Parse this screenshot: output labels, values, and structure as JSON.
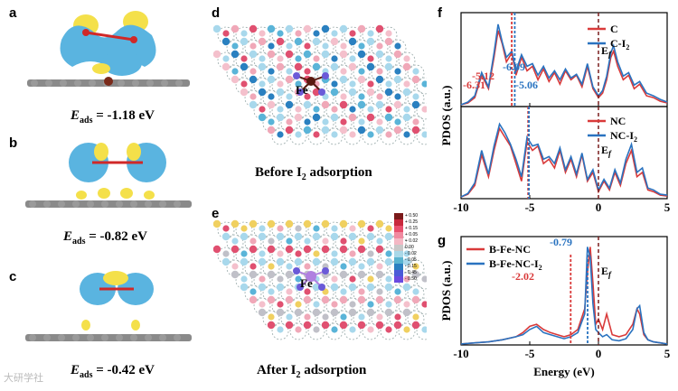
{
  "panels": {
    "a": {
      "label": "a",
      "e_symbol": "E",
      "e_sub": "ads",
      "e_value": "= -1.18 eV"
    },
    "b": {
      "label": "b",
      "e_symbol": "E",
      "e_sub": "ads",
      "e_value": "= -0.82 eV"
    },
    "c": {
      "label": "c",
      "e_symbol": "E",
      "e_sub": "ads",
      "e_value": "= -0.42 eV"
    },
    "d": {
      "label": "d",
      "caption_pre": "Before I",
      "caption_sub": "2",
      "caption_post": " adsorption",
      "atom_label": "Fe"
    },
    "e": {
      "label": "e",
      "caption_pre": "After I",
      "caption_sub": "2",
      "caption_post": " adsorption",
      "atom_label": "Fe",
      "colorbar": [
        "+ 0.50",
        "+ 0.25",
        "+ 0.15",
        "+ 0.05",
        "+ 0.02",
        "0.00",
        "- 0.02",
        "- 0.05",
        "- 0.15",
        "- 0.45",
        "- 0.50"
      ],
      "colorbar_colors": [
        "#7a1a1a",
        "#c8283c",
        "#e8506e",
        "#f08aa0",
        "#f4b8c4",
        "#c8c8c8",
        "#a8d8e8",
        "#5ab4d0",
        "#2a7fc0",
        "#4a5ad8",
        "#6a4ae0"
      ]
    },
    "f": {
      "label": "f"
    },
    "g": {
      "label": "g"
    }
  },
  "colors": {
    "red": "#d93a3a",
    "blue": "#2a73c0",
    "ef": "#7a1f1f"
  },
  "watermark": "大研学社",
  "chart_data": [
    {
      "type": "line",
      "id": "f_top",
      "ylabel": "PDOS (a.u.)",
      "xlim": [
        -10,
        5
      ],
      "xticks": [
        "-10",
        "-5",
        "0",
        "5"
      ],
      "legend": [
        {
          "name": "C",
          "color": "#d93a3a"
        },
        {
          "name": "C-I",
          "sub": "2",
          "color": "#2a73c0"
        }
      ],
      "fermi_label": "E",
      "fermi_sub": "f",
      "annotations": [
        {
          "text": "-6.31",
          "x": -6.31,
          "color": "#d93a3a"
        },
        {
          "text": "-6.09",
          "x": -6.09,
          "color": "#2a73c0"
        }
      ],
      "series": [
        {
          "name": "C",
          "color": "#d93a3a",
          "x": [
            -10,
            -9.5,
            -9,
            -8.5,
            -8,
            -7.6,
            -7.3,
            -7.0,
            -6.7,
            -6.3,
            -6.0,
            -5.6,
            -5.2,
            -4.8,
            -4.4,
            -4.0,
            -3.6,
            -3.2,
            -2.8,
            -2.4,
            -2.0,
            -1.6,
            -1.2,
            -0.8,
            -0.4,
            0,
            0.3,
            0.6,
            0.9,
            1.1,
            1.4,
            1.8,
            2.2,
            2.6,
            3.0,
            3.5,
            4.0,
            4.5,
            5
          ],
          "y": [
            0.02,
            0.04,
            0.1,
            0.35,
            0.2,
            0.55,
            0.85,
            0.7,
            0.5,
            0.6,
            0.35,
            0.55,
            0.4,
            0.45,
            0.3,
            0.42,
            0.28,
            0.38,
            0.25,
            0.4,
            0.3,
            0.35,
            0.22,
            0.45,
            0.2,
            0.1,
            0.15,
            0.3,
            0.55,
            0.62,
            0.45,
            0.3,
            0.35,
            0.2,
            0.25,
            0.12,
            0.1,
            0.06,
            0.04
          ]
        },
        {
          "name": "C-I2",
          "color": "#2a73c0",
          "x": [
            -10,
            -9.5,
            -9,
            -8.5,
            -8,
            -7.6,
            -7.3,
            -7.0,
            -6.7,
            -6.3,
            -6.0,
            -5.6,
            -5.2,
            -4.8,
            -4.4,
            -4.0,
            -3.6,
            -3.2,
            -2.8,
            -2.4,
            -2.0,
            -1.6,
            -1.2,
            -0.8,
            -0.4,
            0,
            0.3,
            0.6,
            0.9,
            1.1,
            1.4,
            1.8,
            2.2,
            2.6,
            3.0,
            3.5,
            4.0,
            4.5,
            5
          ],
          "y": [
            0.02,
            0.05,
            0.12,
            0.38,
            0.22,
            0.6,
            0.92,
            0.72,
            0.55,
            0.62,
            0.4,
            0.58,
            0.45,
            0.48,
            0.35,
            0.45,
            0.32,
            0.4,
            0.3,
            0.42,
            0.32,
            0.36,
            0.25,
            0.48,
            0.22,
            0.12,
            0.18,
            0.34,
            0.6,
            0.68,
            0.5,
            0.34,
            0.38,
            0.24,
            0.28,
            0.15,
            0.12,
            0.08,
            0.05
          ]
        }
      ]
    },
    {
      "type": "line",
      "id": "f_bottom",
      "ylabel": "PDOS (a.u.)",
      "xlim": [
        -10,
        5
      ],
      "xticks": [
        "-10",
        "-5",
        "0",
        "5"
      ],
      "legend": [
        {
          "name": "NC",
          "color": "#d93a3a"
        },
        {
          "name": "NC-I",
          "sub": "2",
          "color": "#2a73c0"
        }
      ],
      "fermi_label": "E",
      "fermi_sub": "f",
      "annotations": [
        {
          "text": "-5.12",
          "x": -5.12,
          "color": "#d93a3a"
        },
        {
          "text": "-5.06",
          "x": -5.06,
          "color": "#2a73c0"
        }
      ],
      "series": [
        {
          "name": "NC",
          "color": "#d93a3a",
          "x": [
            -10,
            -9.5,
            -9,
            -8.5,
            -8,
            -7.6,
            -7.2,
            -6.8,
            -6.4,
            -6.0,
            -5.6,
            -5.2,
            -4.8,
            -4.4,
            -4.0,
            -3.6,
            -3.2,
            -2.8,
            -2.4,
            -2.0,
            -1.6,
            -1.2,
            -0.8,
            -0.4,
            0,
            0.4,
            0.8,
            1.2,
            1.6,
            2.0,
            2.4,
            2.8,
            3.2,
            3.6,
            4.0,
            4.5,
            5
          ],
          "y": [
            0.02,
            0.05,
            0.15,
            0.5,
            0.25,
            0.55,
            0.8,
            0.7,
            0.6,
            0.4,
            0.2,
            0.65,
            0.55,
            0.6,
            0.4,
            0.45,
            0.35,
            0.55,
            0.3,
            0.45,
            0.25,
            0.5,
            0.2,
            0.3,
            0.08,
            0.2,
            0.1,
            0.3,
            0.15,
            0.4,
            0.55,
            0.25,
            0.3,
            0.1,
            0.08,
            0.04,
            0.03
          ]
        },
        {
          "name": "NC-I2",
          "color": "#2a73c0",
          "x": [
            -10,
            -9.5,
            -9,
            -8.5,
            -8,
            -7.6,
            -7.2,
            -6.8,
            -6.4,
            -6.0,
            -5.6,
            -5.2,
            -4.8,
            -4.4,
            -4.0,
            -3.6,
            -3.2,
            -2.8,
            -2.4,
            -2.0,
            -1.6,
            -1.2,
            -0.8,
            -0.4,
            0,
            0.4,
            0.8,
            1.2,
            1.6,
            2.0,
            2.4,
            2.8,
            3.2,
            3.6,
            4.0,
            4.5,
            5
          ],
          "y": [
            0.02,
            0.06,
            0.18,
            0.55,
            0.28,
            0.6,
            0.85,
            0.75,
            0.62,
            0.45,
            0.25,
            0.7,
            0.6,
            0.62,
            0.45,
            0.48,
            0.4,
            0.58,
            0.33,
            0.48,
            0.28,
            0.52,
            0.22,
            0.33,
            0.1,
            0.22,
            0.12,
            0.33,
            0.18,
            0.45,
            0.62,
            0.3,
            0.35,
            0.12,
            0.1,
            0.05,
            0.04
          ]
        }
      ]
    },
    {
      "type": "line",
      "id": "g",
      "ylabel": "PDOS (a.u.)",
      "xlabel": "Energy (eV)",
      "xlim": [
        -10,
        5
      ],
      "xticks": [
        "-10",
        "-5",
        "0",
        "5"
      ],
      "legend": [
        {
          "name": "B-Fe-NC",
          "color": "#d93a3a"
        },
        {
          "name": "B-Fe-NC-I",
          "sub": "2",
          "color": "#2a73c0"
        }
      ],
      "fermi_label": "E",
      "fermi_sub": "f",
      "annotations": [
        {
          "text": "-2.02",
          "x": -2.02,
          "color": "#d93a3a"
        },
        {
          "text": "-0.79",
          "x": -0.79,
          "color": "#2a73c0"
        }
      ],
      "series": [
        {
          "name": "B-Fe-NC",
          "color": "#d93a3a",
          "x": [
            -10,
            -9,
            -8,
            -7,
            -6,
            -5.5,
            -5,
            -4.5,
            -4,
            -3.5,
            -3,
            -2.5,
            -2,
            -1.5,
            -1.0,
            -0.8,
            -0.6,
            -0.4,
            -0.2,
            0,
            0.3,
            0.6,
            1.0,
            1.5,
            2.0,
            2.5,
            2.8,
            3.0,
            3.3,
            3.6,
            4,
            4.5,
            5
          ],
          "y": [
            0.01,
            0.02,
            0.03,
            0.05,
            0.08,
            0.12,
            0.18,
            0.2,
            0.15,
            0.12,
            0.1,
            0.08,
            0.1,
            0.15,
            0.35,
            0.7,
            0.95,
            0.6,
            0.2,
            0.25,
            0.15,
            0.3,
            0.1,
            0.08,
            0.1,
            0.2,
            0.35,
            0.3,
            0.1,
            0.05,
            0.03,
            0.02,
            0.01
          ]
        },
        {
          "name": "B-Fe-NC-I2",
          "color": "#2a73c0",
          "x": [
            -10,
            -9,
            -8,
            -7,
            -6,
            -5.5,
            -5,
            -4.5,
            -4,
            -3.5,
            -3,
            -2.5,
            -2,
            -1.5,
            -1.0,
            -0.8,
            -0.6,
            -0.4,
            -0.2,
            0,
            0.3,
            0.6,
            1.0,
            1.5,
            2.0,
            2.5,
            2.8,
            3.0,
            3.3,
            3.6,
            4,
            4.5,
            5
          ],
          "y": [
            0.01,
            0.02,
            0.03,
            0.05,
            0.08,
            0.1,
            0.15,
            0.18,
            0.12,
            0.1,
            0.08,
            0.06,
            0.08,
            0.12,
            0.3,
            0.95,
            0.85,
            0.4,
            0.15,
            0.12,
            0.08,
            0.1,
            0.05,
            0.04,
            0.06,
            0.15,
            0.35,
            0.38,
            0.12,
            0.05,
            0.03,
            0.02,
            0.01
          ]
        }
      ]
    }
  ]
}
